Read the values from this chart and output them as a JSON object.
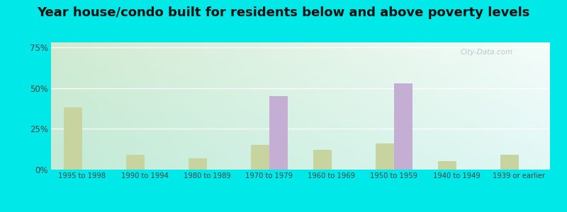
{
  "title": "Year house/condo built for residents below and above poverty levels",
  "categories": [
    "1995 to 1998",
    "1990 to 1994",
    "1980 to 1989",
    "1970 to 1979",
    "1960 to 1969",
    "1950 to 1959",
    "1940 to 1949",
    "1939 or earlier"
  ],
  "below_poverty": [
    0,
    0,
    0,
    45,
    0,
    53,
    0,
    0
  ],
  "above_poverty": [
    38,
    9,
    7,
    15,
    12,
    16,
    5,
    9
  ],
  "below_color": "#c4aed4",
  "above_color": "#c8d4a0",
  "yticks": [
    0,
    25,
    50,
    75
  ],
  "ytick_labels": [
    "0%",
    "25%",
    "50%",
    "75%"
  ],
  "ylim": [
    0,
    78
  ],
  "outer_bg": "#00e8e8",
  "bar_width": 0.3,
  "title_fontsize": 13,
  "watermark": "City-Data.com"
}
